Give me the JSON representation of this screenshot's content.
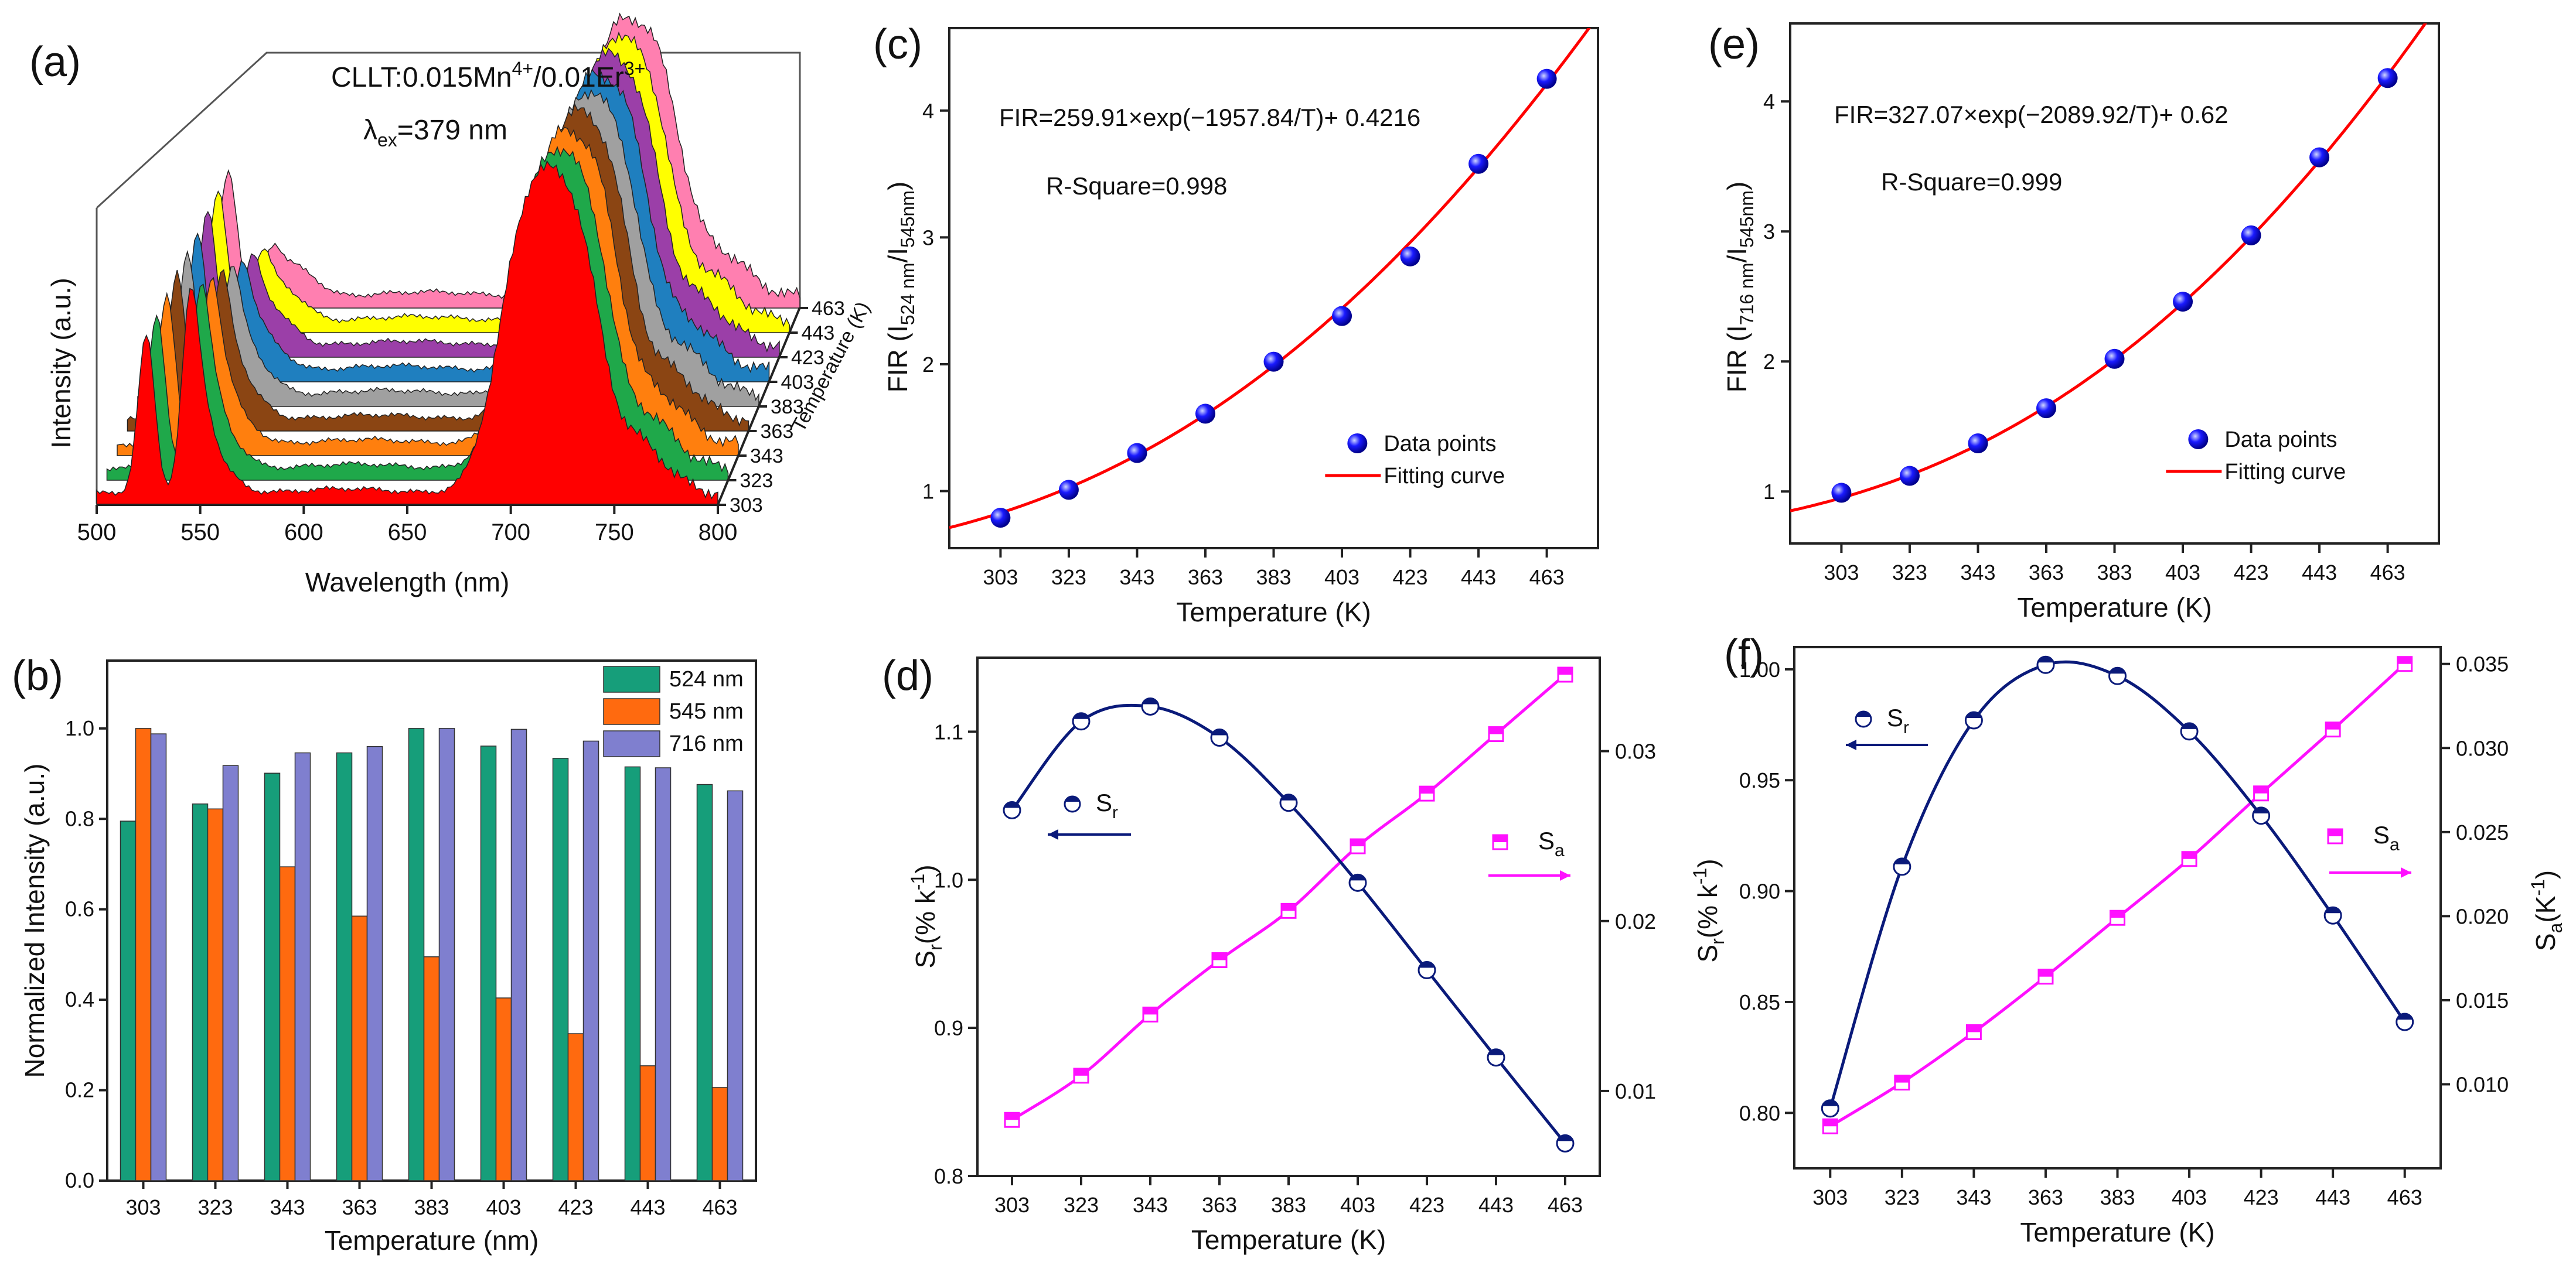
{
  "panels": {
    "a": {
      "label": "(a)",
      "title_main": "CLLT:0.015Mn",
      "title_sup1": "4+",
      "title_mid": "/0.01Er",
      "title_sup2": "3+",
      "lambda_pre": "λ",
      "lambda_sub": "ex",
      "lambda_post": "=379 nm",
      "xlabel": "Wavelength (nm)",
      "ylabel": "Intensity (a.u.)",
      "depth_label": "Temperature (K)"
    },
    "b": {
      "label": "(b)"
    },
    "c": {
      "label": "(c)",
      "equation": "FIR=259.91×exp(−1957.84/T)+ 0.4216",
      "rsquare": "R-Square=0.998",
      "legend_points": "Data points",
      "legend_curve": "Fitting curve",
      "ylabel_pre": "FIR (I",
      "ylabel_sub1": "524 nm",
      "ylabel_mid": "/I",
      "ylabel_sub2": "545nm",
      "ylabel_post": ")"
    },
    "d": {
      "label": "(d)",
      "sr_pre": "S",
      "sr_sub": "r",
      "sa_pre": "S",
      "sa_sub": "a",
      "ylabel_left_pre": "S",
      "ylabel_left_sub": "r",
      "ylabel_left_post": "(% k",
      "ylabel_left_sup": "-1",
      "ylabel_left_end": ")"
    },
    "e": {
      "label": "(e)",
      "equation": "FIR=327.07×exp(−2089.92/T)+ 0.62",
      "rsquare": "R-Square=0.999",
      "legend_points": "Data points",
      "legend_curve": "Fitting curve",
      "ylabel_pre": "FIR (I",
      "ylabel_sub1": "716 nm",
      "ylabel_mid": "/I",
      "ylabel_sub2": "545nm",
      "ylabel_post": ")"
    },
    "f": {
      "label": "(f)",
      "sr_pre": "S",
      "sr_sub": "r",
      "sa_pre": "S",
      "sa_sub": "a",
      "ylabel_left_pre": "S",
      "ylabel_left_sub": "r",
      "ylabel_left_post": "(% k",
      "ylabel_left_sup": "-1",
      "ylabel_left_end": ")",
      "ylabel_right_pre": "S",
      "ylabel_right_sub": "a",
      "ylabel_right_post": "(K",
      "ylabel_right_sup": "-1",
      "ylabel_right_end": ")"
    }
  },
  "colors": {
    "spectra": [
      "#ff0000",
      "#1fa84a",
      "#ff7f0e",
      "#8b4513",
      "#a0a0a0",
      "#1f7fbf",
      "#9b3fa8",
      "#ffff00",
      "#ff7fb0"
    ],
    "bar_524": "#169e7a",
    "bar_545": "#ff6a0f",
    "bar_716": "#7f7fcf",
    "fit_red": "#ff0000",
    "point_blue": "#1a1aff",
    "sr_navy": "#0a1a7a",
    "sa_magenta": "#ff10ff"
  },
  "chart_data": [
    {
      "id": "a",
      "type": "area",
      "title": "CLLT:0.015Mn4+/0.01Er3+  λex=379 nm",
      "xlabel": "Wavelength (nm)",
      "ylabel": "Intensity (a.u.)",
      "xlim": [
        500,
        800
      ],
      "x_ticks": [
        500,
        550,
        600,
        650,
        700,
        750,
        800
      ],
      "depth_label": "Temperature (K)",
      "series_temperatures": [
        303,
        323,
        343,
        363,
        383,
        403,
        423,
        443,
        463
      ],
      "depth_ticks": [
        303,
        323,
        343,
        363,
        383,
        403,
        423,
        443,
        463
      ],
      "note": "waterfall of emission spectra with peaks near 524, 545 and 716 nm"
    },
    {
      "id": "b",
      "type": "bar",
      "xlabel": "Temperature (nm)",
      "ylabel": "Normalized Intensity (a.u.)",
      "ylim": [
        0,
        1.15
      ],
      "y_ticks": [
        0.0,
        0.2,
        0.4,
        0.6,
        0.8,
        1.0
      ],
      "categories": [
        "303",
        "323",
        "343",
        "363",
        "383",
        "403",
        "423",
        "443",
        "463"
      ],
      "series": [
        {
          "name": "524 nm",
          "values": [
            0.795,
            0.833,
            0.901,
            0.946,
            1.0,
            0.961,
            0.934,
            0.915,
            0.876
          ]
        },
        {
          "name": "545 nm",
          "values": [
            1.0,
            0.822,
            0.694,
            0.585,
            0.495,
            0.404,
            0.325,
            0.254,
            0.206
          ]
        },
        {
          "name": "716 nm",
          "values": [
            0.988,
            0.918,
            0.946,
            0.96,
            1.0,
            0.998,
            0.972,
            0.913,
            0.862
          ]
        }
      ]
    },
    {
      "id": "c",
      "type": "scatter",
      "xlabel": "Temperature (K)",
      "ylabel": "FIR (I524 nm/I545nm)",
      "xlim": [
        288,
        478
      ],
      "ylim": [
        0.55,
        4.65
      ],
      "x_ticks": [
        303,
        323,
        343,
        363,
        383,
        403,
        423,
        443,
        463
      ],
      "y_ticks": [
        1,
        2,
        3,
        4
      ],
      "x": [
        303,
        323,
        343,
        363,
        383,
        403,
        423,
        443,
        463
      ],
      "y": [
        0.79,
        1.01,
        1.3,
        1.61,
        2.02,
        2.38,
        2.85,
        3.58,
        4.25
      ],
      "fit": {
        "A": 259.91,
        "B": 1957.84,
        "C": 0.4216
      },
      "legend": [
        "Data points",
        "Fitting curve"
      ]
    },
    {
      "id": "d",
      "type": "line",
      "xlabel": "Temperature (K)",
      "ylabel_left": "Sr(% k-1)",
      "xlim": [
        293,
        473
      ],
      "ylim_left": [
        0.8,
        1.15
      ],
      "ylim_right": [
        0.005,
        0.0355
      ],
      "x_ticks": [
        303,
        323,
        343,
        363,
        383,
        403,
        423,
        443,
        463
      ],
      "y_ticks_left": [
        0.8,
        0.9,
        1.0,
        1.1
      ],
      "y_ticks_right": [
        0.01,
        0.02,
        0.03
      ],
      "x": [
        303,
        323,
        343,
        363,
        383,
        403,
        423,
        443,
        463
      ],
      "series": [
        {
          "name": "Sr",
          "axis": "left",
          "values": [
            1.047,
            1.107,
            1.117,
            1.096,
            1.052,
            0.998,
            0.939,
            0.88,
            0.822
          ]
        },
        {
          "name": "Sa",
          "axis": "right",
          "values": [
            0.0083,
            0.0109,
            0.0145,
            0.0177,
            0.0206,
            0.0244,
            0.0275,
            0.031,
            0.0345
          ]
        }
      ]
    },
    {
      "id": "e",
      "type": "scatter",
      "xlabel": "Temperature (K)",
      "ylabel": "FIR (I716 nm/I545nm)",
      "xlim": [
        288,
        478
      ],
      "ylim": [
        0.6,
        4.6
      ],
      "x_ticks": [
        303,
        323,
        343,
        363,
        383,
        403,
        423,
        443,
        463
      ],
      "y_ticks": [
        1,
        2,
        3,
        4
      ],
      "x": [
        303,
        323,
        343,
        363,
        383,
        403,
        423,
        443,
        463
      ],
      "y": [
        0.99,
        1.12,
        1.37,
        1.64,
        2.02,
        2.46,
        2.97,
        3.57,
        4.18
      ],
      "fit": {
        "A": 327.07,
        "B": 2089.92,
        "C": 0.62
      },
      "legend": [
        "Data points",
        "Fitting curve"
      ]
    },
    {
      "id": "f",
      "type": "line",
      "xlabel": "Temperature (K)",
      "ylabel_left": "Sr(% k-1)",
      "ylabel_right": "Sa(K-1)",
      "xlim": [
        293,
        473
      ],
      "ylim_left": [
        0.775,
        1.01
      ],
      "ylim_right": [
        0.005,
        0.036
      ],
      "x_ticks": [
        303,
        323,
        343,
        363,
        383,
        403,
        423,
        443,
        463
      ],
      "y_ticks_left": [
        0.8,
        0.85,
        0.9,
        0.95,
        1.0
      ],
      "y_ticks_right": [
        0.01,
        0.015,
        0.02,
        0.025,
        0.03,
        0.035
      ],
      "x": [
        303,
        323,
        343,
        363,
        383,
        403,
        423,
        443,
        463
      ],
      "series": [
        {
          "name": "Sr",
          "axis": "left",
          "values": [
            0.802,
            0.911,
            0.977,
            1.002,
            0.997,
            0.972,
            0.934,
            0.889,
            0.841
          ]
        },
        {
          "name": "Sa",
          "axis": "right",
          "values": [
            0.0075,
            0.0101,
            0.0131,
            0.0164,
            0.0199,
            0.0234,
            0.0273,
            0.0311,
            0.035
          ]
        }
      ]
    }
  ]
}
